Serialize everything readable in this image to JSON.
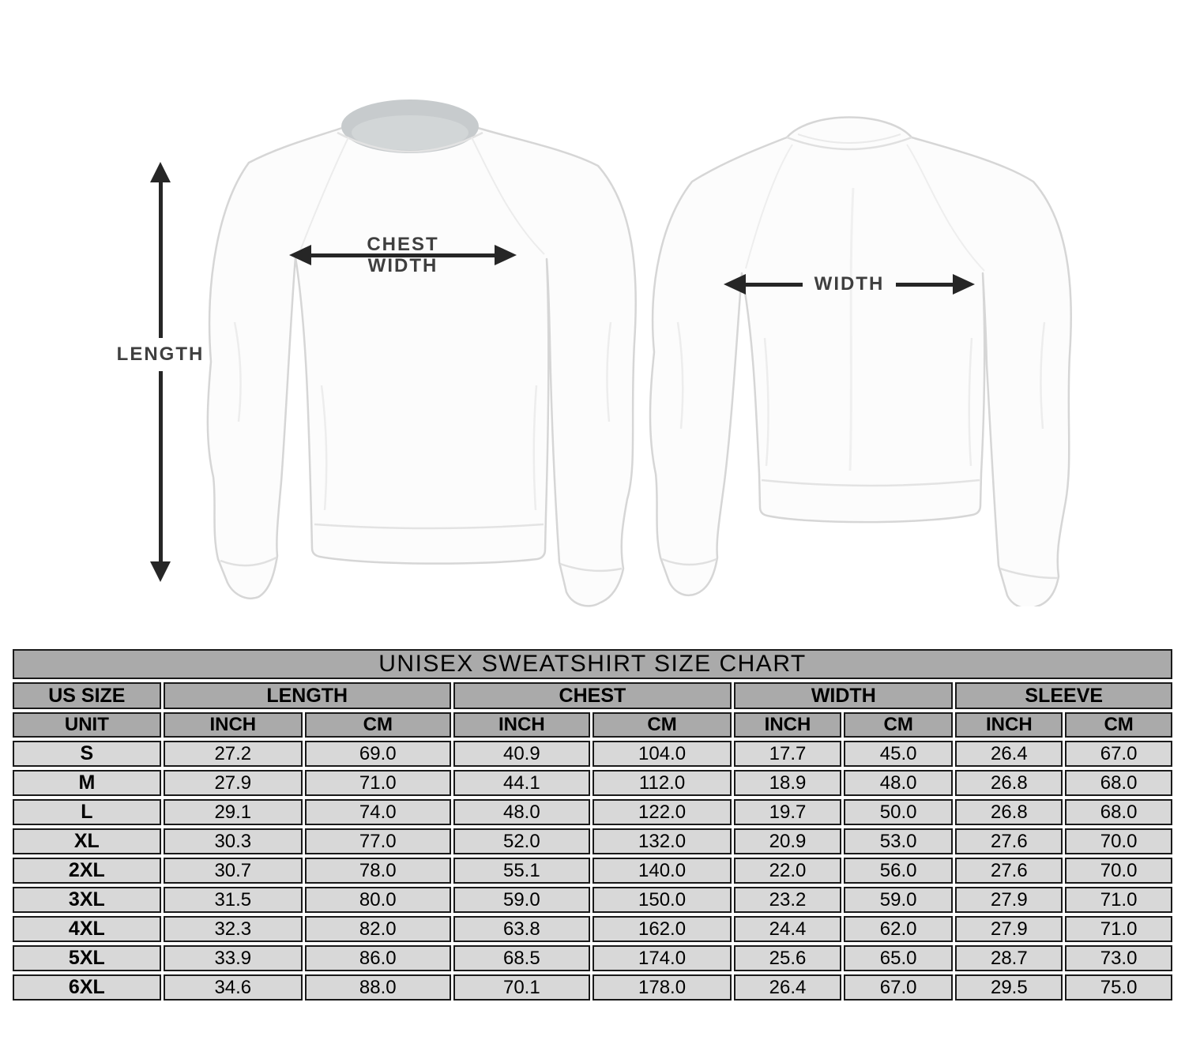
{
  "page": {
    "background": "#ffffff"
  },
  "diagram": {
    "length_label": "LENGTH",
    "chest_width_label": [
      "CHEST",
      "WIDTH"
    ],
    "back_width_label": "WIDTH",
    "arrow_color": "#262626",
    "label_color": "#3f3f3f",
    "front_view_icon": "sweatshirt-front",
    "back_view_icon": "sweatshirt-back"
  },
  "chart_data": {
    "type": "table",
    "title": "UNISEX SWEATSHIRT SIZE CHART",
    "column_groups": [
      {
        "label": "US SIZE",
        "span": 1
      },
      {
        "label": "LENGTH",
        "span": 2
      },
      {
        "label": "CHEST",
        "span": 2
      },
      {
        "label": "WIDTH",
        "span": 2
      },
      {
        "label": "SLEEVE",
        "span": 2
      }
    ],
    "unit_row": [
      "UNIT",
      "INCH",
      "CM",
      "INCH",
      "CM",
      "INCH",
      "CM",
      "INCH",
      "CM"
    ],
    "rows": [
      [
        "S",
        "27.2",
        "69.0",
        "40.9",
        "104.0",
        "17.7",
        "45.0",
        "26.4",
        "67.0"
      ],
      [
        "M",
        "27.9",
        "71.0",
        "44.1",
        "112.0",
        "18.9",
        "48.0",
        "26.8",
        "68.0"
      ],
      [
        "L",
        "29.1",
        "74.0",
        "48.0",
        "122.0",
        "19.7",
        "50.0",
        "26.8",
        "68.0"
      ],
      [
        "XL",
        "30.3",
        "77.0",
        "52.0",
        "132.0",
        "20.9",
        "53.0",
        "27.6",
        "70.0"
      ],
      [
        "2XL",
        "30.7",
        "78.0",
        "55.1",
        "140.0",
        "22.0",
        "56.0",
        "27.6",
        "70.0"
      ],
      [
        "3XL",
        "31.5",
        "80.0",
        "59.0",
        "150.0",
        "23.2",
        "59.0",
        "27.9",
        "71.0"
      ],
      [
        "4XL",
        "32.3",
        "82.0",
        "63.8",
        "162.0",
        "24.4",
        "62.0",
        "27.9",
        "71.0"
      ],
      [
        "5XL",
        "33.9",
        "86.0",
        "68.5",
        "174.0",
        "25.6",
        "65.0",
        "28.7",
        "73.0"
      ],
      [
        "6XL",
        "34.6",
        "88.0",
        "70.1",
        "178.0",
        "26.4",
        "67.0",
        "29.5",
        "75.0"
      ]
    ],
    "colors": {
      "header_bg": "#aaaaaa",
      "data_row_bg": "#d8d8d8",
      "cell_border": "#1a1a1a"
    }
  }
}
